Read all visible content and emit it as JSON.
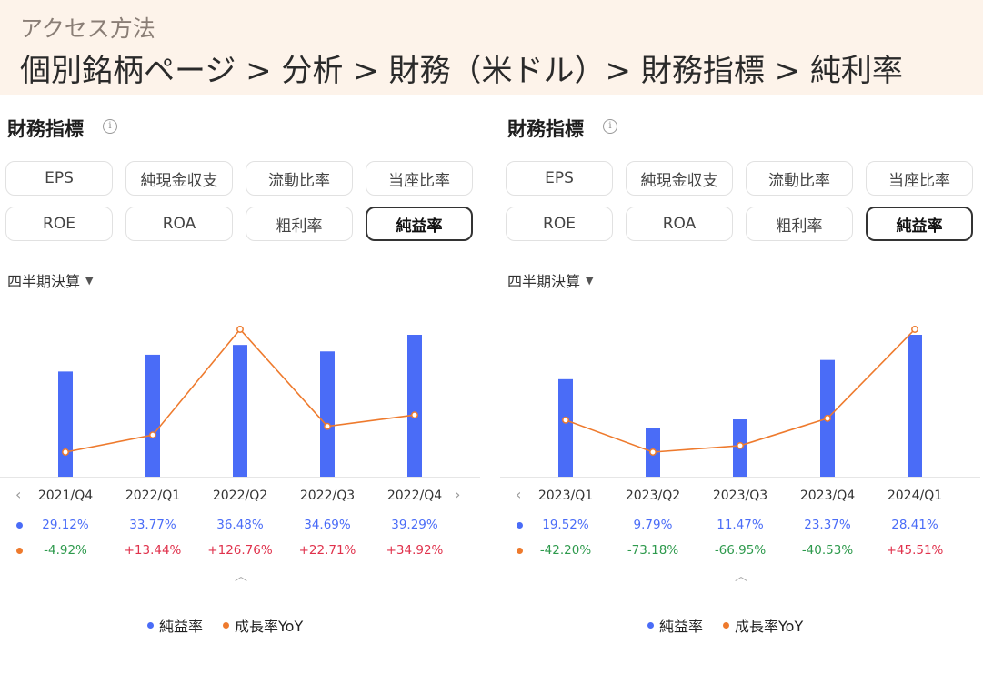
{
  "header": {
    "subtitle": "アクセス方法",
    "path": "個別銘柄ページ > 分析 > 財務（米ドル）> 財務指標 > 純利率"
  },
  "colors": {
    "bar": "#4a6cf7",
    "line": "#ee7a2d",
    "positive": "#e0324c",
    "negative": "#2e9a4d"
  },
  "panels": [
    {
      "title": "財務指標",
      "info_icon": "info-icon",
      "buttons": [
        "EPS",
        "純現金収支",
        "流動比率",
        "当座比率",
        "ROE",
        "ROA",
        "粗利率",
        "純益率"
      ],
      "active_button": "純益率",
      "period": "四半期決算",
      "rows_labels": {
        "margin": "純益率",
        "growth": "成長率YoY"
      },
      "margin_values": [
        "29.12%",
        "33.77%",
        "36.48%",
        "34.69%",
        "39.29%"
      ],
      "growth_values": [
        "-4.92%",
        "+13.44%",
        "+126.76%",
        "+22.71%",
        "+34.92%"
      ],
      "legend": {
        "margin": "純益率",
        "growth": "成長率YoY"
      },
      "show_next_arrow": true
    },
    {
      "title": "財務指標",
      "info_icon": "info-icon",
      "buttons": [
        "EPS",
        "純現金収支",
        "流動比率",
        "当座比率",
        "ROE",
        "ROA",
        "粗利率",
        "純益率"
      ],
      "active_button": "純益率",
      "period": "四半期決算",
      "rows_labels": {
        "margin": "純益率",
        "growth": "成長率YoY"
      },
      "margin_values": [
        "19.52%",
        "9.79%",
        "11.47%",
        "23.37%",
        "28.41%"
      ],
      "growth_values": [
        "-42.20%",
        "-73.18%",
        "-66.95%",
        "-40.53%",
        "+45.51%"
      ],
      "legend": {
        "margin": "純益率",
        "growth": "成長率YoY"
      },
      "show_next_arrow": false
    }
  ],
  "chart_data": [
    {
      "type": "bar",
      "categories": [
        "2021/Q4",
        "2022/Q1",
        "2022/Q2",
        "2022/Q3",
        "2022/Q4"
      ],
      "series": [
        {
          "name": "純益率",
          "type": "bar",
          "values": [
            29.12,
            33.77,
            36.48,
            34.69,
            39.29
          ]
        },
        {
          "name": "成長率YoY",
          "type": "line",
          "values": [
            -4.92,
            13.44,
            126.76,
            22.71,
            34.92
          ]
        }
      ]
    },
    {
      "type": "bar",
      "categories": [
        "2023/Q1",
        "2023/Q2",
        "2023/Q3",
        "2023/Q4",
        "2024/Q1"
      ],
      "series": [
        {
          "name": "純益率",
          "type": "bar",
          "values": [
            19.52,
            9.79,
            11.47,
            23.37,
            28.41
          ]
        },
        {
          "name": "成長率YoY",
          "type": "line",
          "values": [
            -42.2,
            -73.18,
            -66.95,
            -40.53,
            45.51
          ]
        }
      ]
    }
  ]
}
